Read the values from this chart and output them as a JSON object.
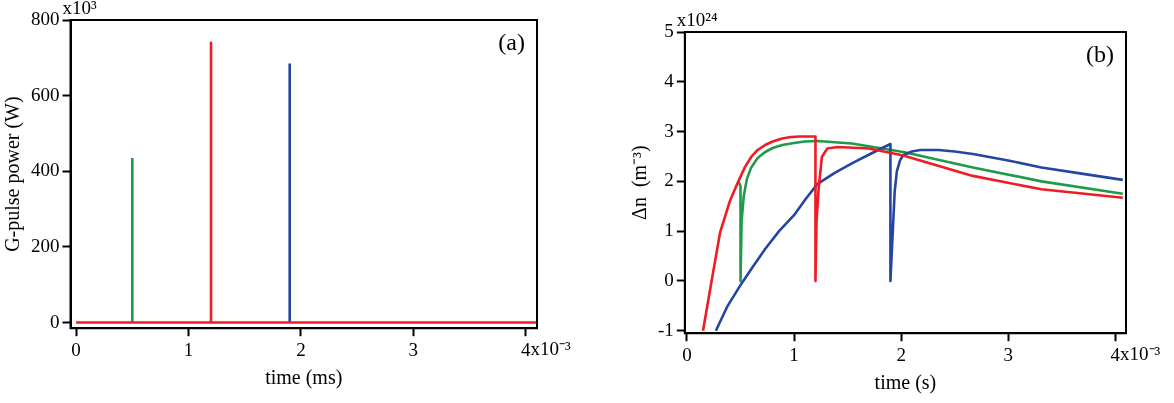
{
  "chart_data": [
    {
      "type": "line",
      "xlabel": "time (ms)",
      "ylabel": "G-pulse power (W)",
      "annotations": [
        "(a)",
        "x10⁻³",
        "x10³"
      ],
      "legend": false,
      "grid": false,
      "marker": "none",
      "line_style": "solid",
      "xlim": [
        -0.05,
        4.1
      ],
      "ylim": [
        -15,
        800
      ],
      "xticks": [
        0,
        1,
        2,
        3,
        4
      ],
      "yticks": [
        0,
        200,
        400,
        600,
        800
      ],
      "series": [
        {
          "color": "#1f9a48",
          "x": [
            0.5,
            0.5
          ],
          "values": [
            0,
            435
          ]
        },
        {
          "color": "#2445a0",
          "x": [
            1.9,
            1.9
          ],
          "values": [
            0,
            685
          ]
        },
        {
          "color": "#ee1c25",
          "x": [
            0,
            1.2,
            1.2,
            1.2,
            4.1
          ],
          "values": [
            0,
            0,
            740,
            0,
            0
          ]
        }
      ]
    },
    {
      "type": "line",
      "xlabel": "time (s)",
      "ylabel": "Δn  (m⁻³)",
      "annotations": [
        "(b)",
        "x10⁻³",
        "x10²⁴"
      ],
      "legend": false,
      "grid": false,
      "marker": "none",
      "line_style": "solid",
      "xlim": [
        -0.02,
        4.1
      ],
      "ylim": [
        -1.05,
        5
      ],
      "xticks": [
        0,
        1,
        2,
        3,
        4
      ],
      "yticks": [
        -1,
        0,
        1,
        2,
        3,
        4,
        5
      ],
      "series": [
        {
          "color": "#1f9a48",
          "x": [
            0.48,
            0.5,
            0.5,
            0.51,
            0.53,
            0.56,
            0.6,
            0.66,
            0.73,
            0.8,
            0.89,
            1.0,
            1.1,
            1.22,
            1.54,
            2.02,
            2.67,
            3.31,
            4.07
          ],
          "values": [
            2.0,
            1.9,
            0,
            1.2,
            1.7,
            2.05,
            2.28,
            2.47,
            2.59,
            2.67,
            2.73,
            2.77,
            2.8,
            2.81,
            2.76,
            2.59,
            2.28,
            2.0,
            1.75
          ]
        },
        {
          "color": "#2445a0",
          "x": [
            0.27,
            0.38,
            0.51,
            0.62,
            0.73,
            0.86,
            1.0,
            1.11,
            1.22,
            1.38,
            1.54,
            1.72,
            1.9,
            1.9,
            1.92,
            1.94,
            1.96,
            1.99,
            2.02,
            2.1,
            2.18,
            2.35,
            2.5,
            2.67,
            3.0,
            3.31,
            3.7,
            4.07
          ],
          "values": [
            -1,
            -0.5,
            -0.05,
            0.3,
            0.64,
            1.0,
            1.32,
            1.65,
            1.95,
            2.17,
            2.36,
            2.56,
            2.75,
            0,
            0.9,
            1.8,
            2.2,
            2.42,
            2.53,
            2.6,
            2.63,
            2.63,
            2.6,
            2.55,
            2.42,
            2.28,
            2.15,
            2.03
          ]
        },
        {
          "color": "#ee1c25",
          "x": [
            0.15,
            0.23,
            0.31,
            0.4,
            0.48,
            0.54,
            0.6,
            0.66,
            0.73,
            0.8,
            0.89,
            0.97,
            1.05,
            1.2,
            1.2,
            1.21,
            1.23,
            1.26,
            1.31,
            1.41,
            1.7,
            2.02,
            2.67,
            3.31,
            4.07
          ],
          "values": [
            -1,
            0,
            0.98,
            1.6,
            2.0,
            2.28,
            2.49,
            2.63,
            2.73,
            2.8,
            2.86,
            2.89,
            2.9,
            2.9,
            0,
            1.2,
            1.87,
            2.49,
            2.66,
            2.69,
            2.66,
            2.52,
            2.11,
            1.84,
            1.67
          ]
        }
      ]
    }
  ]
}
